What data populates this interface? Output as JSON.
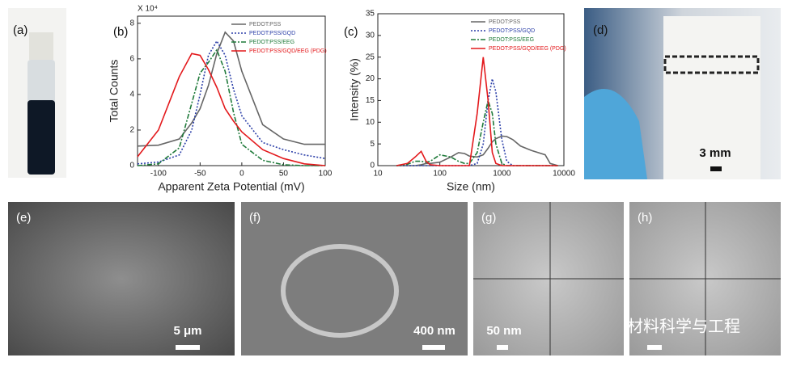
{
  "panels": {
    "a": "(a)",
    "b": "(b)",
    "c": "(c)",
    "d": "(d)",
    "e": "(e)",
    "f": "(f)",
    "g": "(g)",
    "h": "(h)"
  },
  "scale_bars": {
    "d": "3 mm",
    "e": "5 μm",
    "f": "400 nm",
    "g": "50 nm"
  },
  "watermark": "材料科学与工程",
  "chart_data": [
    {
      "type": "line",
      "multiplier": "X 10⁴",
      "x_label": "Apparent Zeta Potential (mV)",
      "y_label": "Total Counts",
      "x": [
        -125,
        -100,
        -75,
        -60,
        -50,
        -40,
        -30,
        -20,
        -10,
        0,
        25,
        50,
        75,
        100
      ],
      "xlim": [
        -125,
        100
      ],
      "xticks": [
        -100,
        -50,
        0,
        50,
        100
      ],
      "ylim": [
        0,
        8.4
      ],
      "yticks": [
        0,
        2,
        4,
        6,
        8
      ],
      "log_x": false,
      "series": [
        {
          "name": "PEDOT:PSS",
          "color": "#666666",
          "style": "solid",
          "values": [
            1.1,
            1.15,
            1.5,
            2.4,
            3.2,
            4.5,
            6.3,
            7.5,
            7.0,
            5.3,
            2.3,
            1.5,
            1.2,
            1.2
          ]
        },
        {
          "name": "PEDOT:PSS/GQD",
          "color": "#2b3fa8",
          "style": "dotted",
          "values": [
            0.1,
            0.2,
            0.6,
            2.0,
            4.0,
            6.2,
            7.0,
            6.2,
            4.3,
            2.8,
            1.3,
            0.9,
            0.6,
            0.4
          ]
        },
        {
          "name": "PEDOT:PSS/EEG",
          "color": "#1f7a3a",
          "style": "dashdot",
          "values": [
            0,
            0.1,
            1.0,
            3.5,
            5.2,
            5.8,
            6.5,
            5.3,
            3.0,
            1.2,
            0.3,
            0.05,
            0,
            0
          ]
        },
        {
          "name": "PEDOT:PSS/GQD/EEG (PDG)",
          "color": "#e3191c",
          "style": "solid",
          "values": [
            0.5,
            2.0,
            5.0,
            6.3,
            6.2,
            5.4,
            4.4,
            3.2,
            2.5,
            1.9,
            0.9,
            0.4,
            0.1,
            0
          ]
        }
      ]
    },
    {
      "type": "line",
      "x_label": "Size (nm)",
      "y_label": "Intensity (%)",
      "x": [
        20,
        30,
        40,
        50,
        60,
        70,
        100,
        150,
        200,
        250,
        300,
        400,
        500,
        600,
        700,
        800,
        1000,
        1200,
        1500,
        2000,
        3000,
        5000,
        6000,
        8000
      ],
      "xlim": [
        10,
        10000
      ],
      "xticks": [
        10,
        100,
        1000,
        10000
      ],
      "ylim": [
        0,
        35
      ],
      "yticks": [
        0,
        5,
        10,
        15,
        20,
        25,
        30,
        35
      ],
      "log_x": true,
      "series": [
        {
          "name": "PEDOT:PSS",
          "color": "#666666",
          "style": "solid",
          "values": [
            0,
            0,
            0,
            0.2,
            0.5,
            0.5,
            0.8,
            2,
            3,
            2.8,
            2.2,
            2,
            2.5,
            4,
            5.5,
            6.2,
            6.8,
            6.7,
            6,
            4.5,
            3.5,
            2.5,
            0.5,
            0
          ]
        },
        {
          "name": "PEDOT:PSS/GQD",
          "color": "#2b3fa8",
          "style": "dotted",
          "values": [
            0,
            0,
            0,
            0,
            0,
            0,
            0,
            0,
            0,
            0,
            0,
            0.5,
            5,
            15,
            20,
            17,
            6,
            1,
            0,
            0,
            0,
            0,
            0,
            0
          ]
        },
        {
          "name": "PEDOT:PSS/EEG",
          "color": "#1f7a3a",
          "style": "dashdot",
          "values": [
            0,
            0.3,
            1,
            1,
            0.8,
            1,
            2.5,
            2,
            1,
            0.5,
            0.5,
            3,
            10,
            15,
            12,
            5,
            0.5,
            0,
            0,
            0,
            0,
            0,
            0,
            0
          ]
        },
        {
          "name": "PEDOT:PSS/GQD/EEG (PDG)",
          "color": "#e3191c",
          "style": "solid",
          "values": [
            0,
            0.5,
            2,
            3.3,
            1,
            0.2,
            0,
            0,
            0,
            0,
            0,
            12,
            25,
            15,
            3,
            0.5,
            0,
            0,
            0,
            0,
            0,
            0,
            0,
            0
          ]
        }
      ]
    }
  ]
}
